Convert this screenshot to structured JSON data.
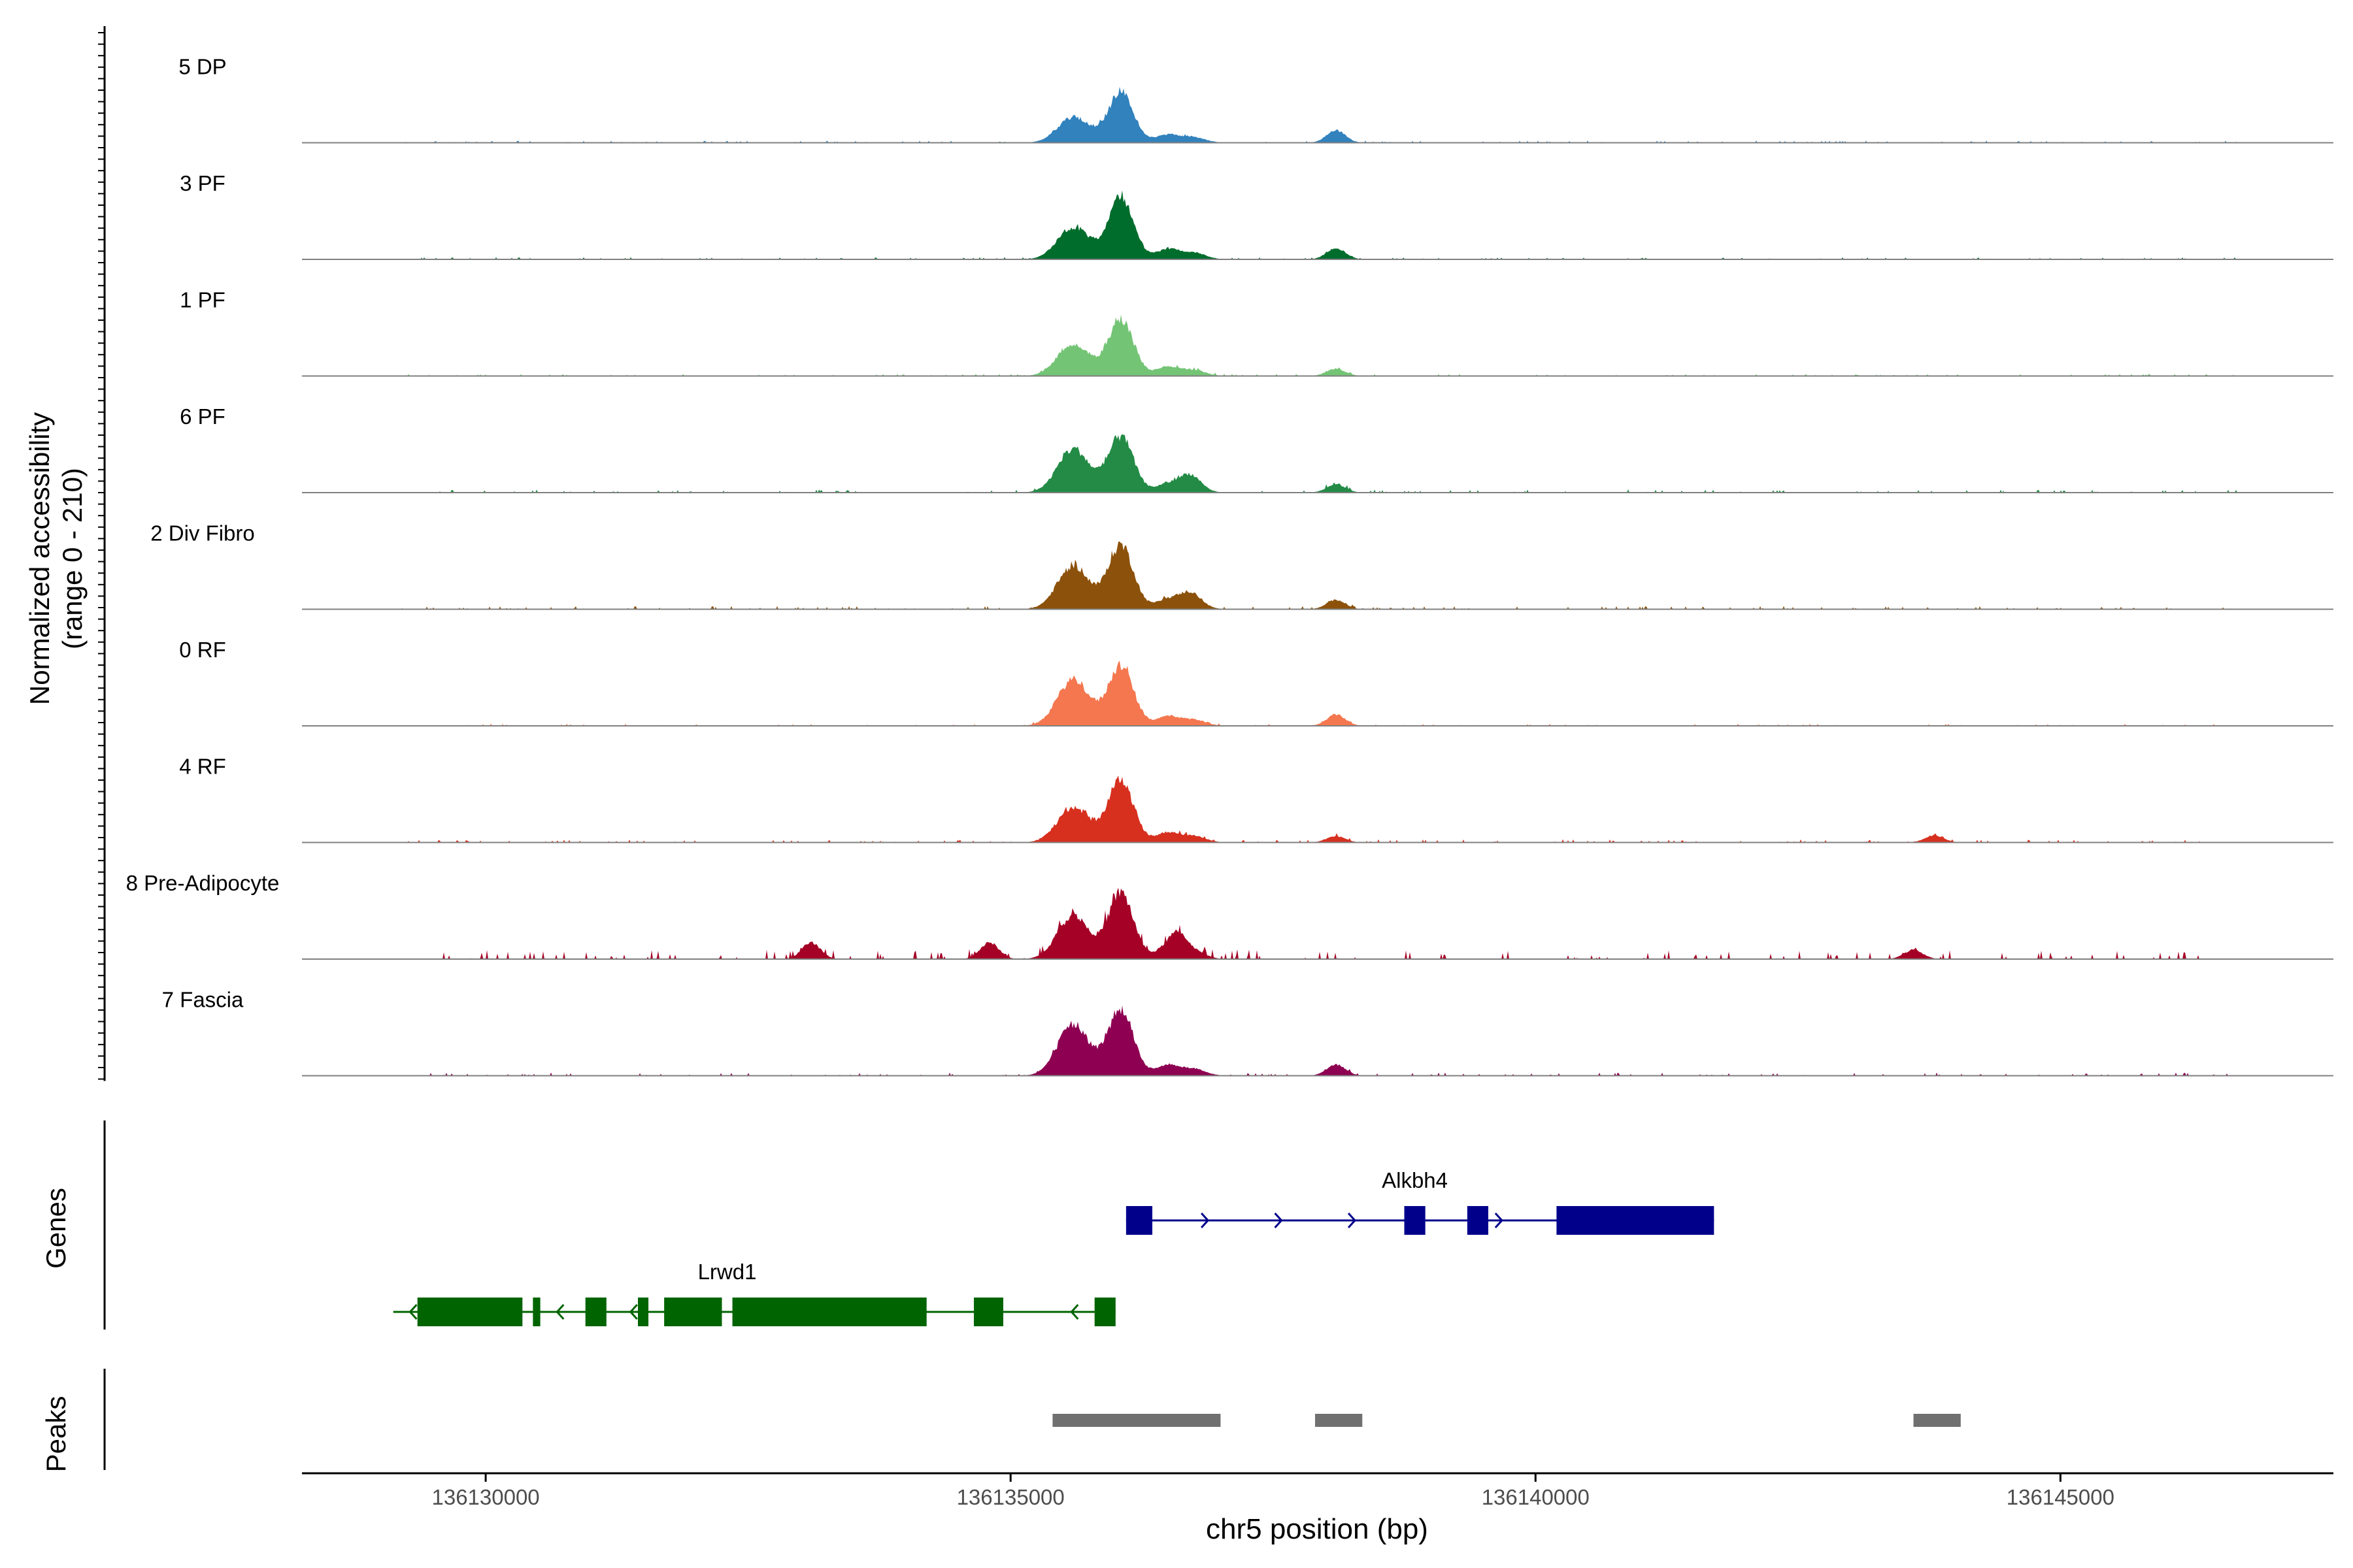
{
  "chart_data": {
    "type": "area",
    "y_axis": {
      "label_line1": "Normalized accessibility",
      "label_line2": "(range 0 - 210)",
      "ylim": [
        0,
        210
      ]
    },
    "x_axis": {
      "label": "chr5 position (bp)",
      "xlim": [
        136128250,
        136147600
      ],
      "ticks": [
        136130000,
        136135000,
        136140000,
        136145000
      ],
      "tick_labels": [
        "136130000",
        "136135000",
        "136140000",
        "136145000"
      ]
    },
    "track_labels": {
      "genes": "Genes",
      "peaks": "Peaks"
    },
    "series": [
      {
        "name": "5 DP",
        "color": "#3182BD",
        "main_height": 0.5,
        "alt_height": 0.25,
        "noise": 0.02,
        "extras": [
          [
            136138100,
            0.12
          ]
        ]
      },
      {
        "name": "3 PF",
        "color": "#006D2C",
        "main_height": 0.62,
        "alt_height": 0.32,
        "noise": 0.02,
        "extras": [
          [
            136138100,
            0.11
          ]
        ]
      },
      {
        "name": "1 PF",
        "color": "#74C476",
        "main_height": 0.56,
        "alt_height": 0.32,
        "noise": 0.02,
        "extras": [
          [
            136138100,
            0.07
          ]
        ]
      },
      {
        "name": "6 PF",
        "color": "#238B45",
        "main_height": 0.55,
        "alt_height": 0.43,
        "noise": 0.03,
        "extras": [
          [
            136138100,
            0.08
          ],
          [
            136136700,
            0.12
          ]
        ]
      },
      {
        "name": "2 Div Fibro",
        "color": "#8C510A",
        "main_height": 0.63,
        "alt_height": 0.43,
        "noise": 0.03,
        "extras": [
          [
            136138100,
            0.09
          ],
          [
            136136700,
            0.1
          ]
        ]
      },
      {
        "name": "0 RF",
        "color": "#F4774F",
        "main_height": 0.59,
        "alt_height": 0.46,
        "noise": 0.02,
        "extras": [
          [
            136138100,
            0.11
          ]
        ]
      },
      {
        "name": "4 RF",
        "color": "#D7301F",
        "main_height": 0.62,
        "alt_height": 0.35,
        "noise": 0.03,
        "extras": [
          [
            136138100,
            0.06
          ],
          [
            136143800,
            0.07
          ]
        ]
      },
      {
        "name": "8 Pre-Adipocyte",
        "color": "#A50026",
        "main_height": 0.65,
        "alt_height": 0.43,
        "noise": 0.09,
        "extras": [
          [
            136134800,
            0.16
          ],
          [
            136136600,
            0.17
          ],
          [
            136133100,
            0.16
          ],
          [
            136143600,
            0.09
          ]
        ]
      },
      {
        "name": "7 Fascia",
        "color": "#8E0152",
        "main_height": 0.66,
        "alt_height": 0.5,
        "noise": 0.03,
        "extras": [
          [
            136138100,
            0.11
          ]
        ]
      }
    ],
    "genes": [
      {
        "name": "Alkbh4",
        "strand": "+",
        "color": "#00008B",
        "row": 0,
        "start": 136136100,
        "end": 136141700,
        "label_pos": 136138850,
        "exons": [
          [
            136136100,
            136136350
          ],
          [
            136138750,
            136138950
          ],
          [
            136139350,
            136139550
          ],
          [
            136140200,
            136141700
          ]
        ]
      },
      {
        "name": "Lrwd1",
        "strand": "-",
        "color": "#006400",
        "row": 1,
        "start": 136129200,
        "end": 136136000,
        "label_pos": 136132300,
        "exons": [
          [
            136129350,
            136130350
          ],
          [
            136130450,
            136130520
          ],
          [
            136130950,
            136131150
          ],
          [
            136131450,
            136131550
          ],
          [
            136131700,
            136132250
          ],
          [
            136132350,
            136134200
          ],
          [
            136134650,
            136134930
          ],
          [
            136135800,
            136136000
          ]
        ]
      }
    ],
    "peaks": [
      [
        136135400,
        136137000
      ],
      [
        136137900,
        136138350
      ],
      [
        136143600,
        136144050
      ]
    ],
    "peak_color": "#707070"
  }
}
